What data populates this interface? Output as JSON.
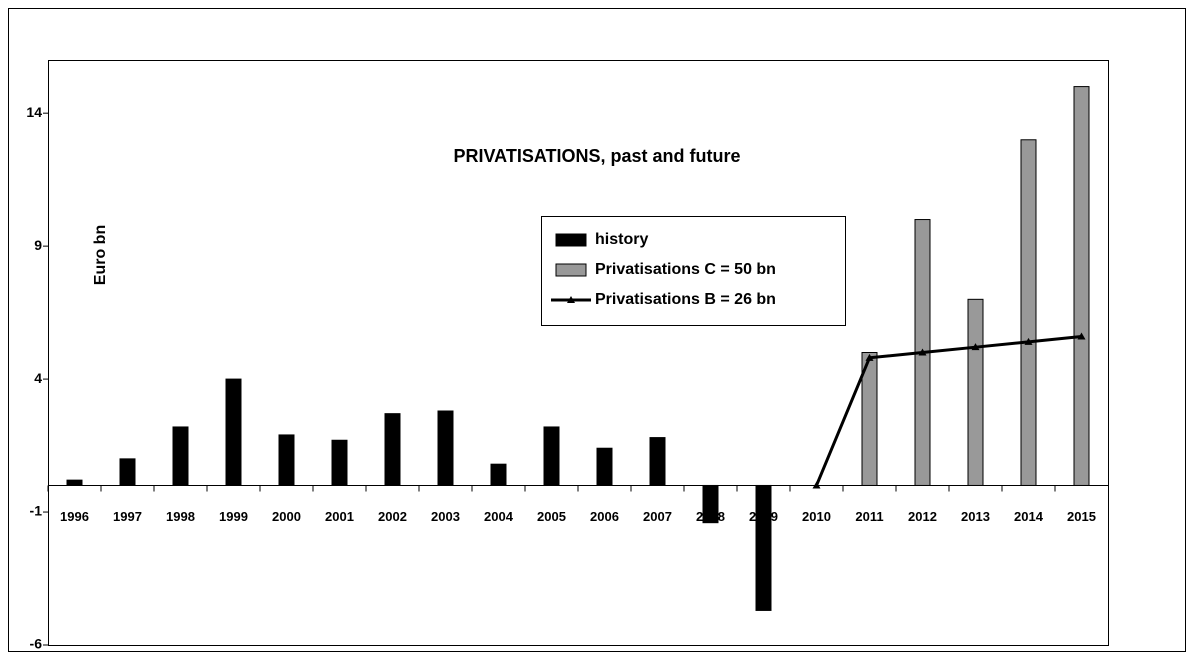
{
  "chart_data": {
    "type": "bar",
    "title": "PRIVATISATIONS, past and future",
    "y_label": "Euro bn",
    "categories": [
      "1996",
      "1997",
      "1998",
      "1999",
      "2000",
      "2001",
      "2002",
      "2003",
      "2004",
      "2005",
      "2006",
      "2007",
      "2008",
      "2009",
      "2010",
      "2011",
      "2012",
      "2013",
      "2014",
      "2015"
    ],
    "series": [
      {
        "name": "history",
        "type": "bar",
        "color": "#000000",
        "values": [
          0.2,
          1.0,
          2.2,
          4.0,
          1.9,
          1.7,
          2.7,
          2.8,
          0.8,
          2.2,
          1.4,
          1.8,
          -1.4,
          -4.7,
          null,
          null,
          null,
          null,
          null,
          null
        ]
      },
      {
        "name": "Privatisations C = 50 bn",
        "type": "bar",
        "color": "#999999",
        "values": [
          null,
          null,
          null,
          null,
          null,
          null,
          null,
          null,
          null,
          null,
          null,
          null,
          null,
          null,
          null,
          5.0,
          10.0,
          7.0,
          13.0,
          15.0
        ]
      },
      {
        "name": "Privatisations B =  26 bn",
        "type": "line",
        "color": "#000000",
        "values": [
          null,
          null,
          null,
          null,
          null,
          null,
          null,
          null,
          null,
          null,
          null,
          null,
          null,
          null,
          0,
          4.8,
          5.0,
          5.2,
          5.4,
          5.6
        ]
      }
    ],
    "ylim": [
      -6,
      16
    ],
    "yticks": [
      -6,
      -1,
      4,
      9,
      14
    ]
  }
}
